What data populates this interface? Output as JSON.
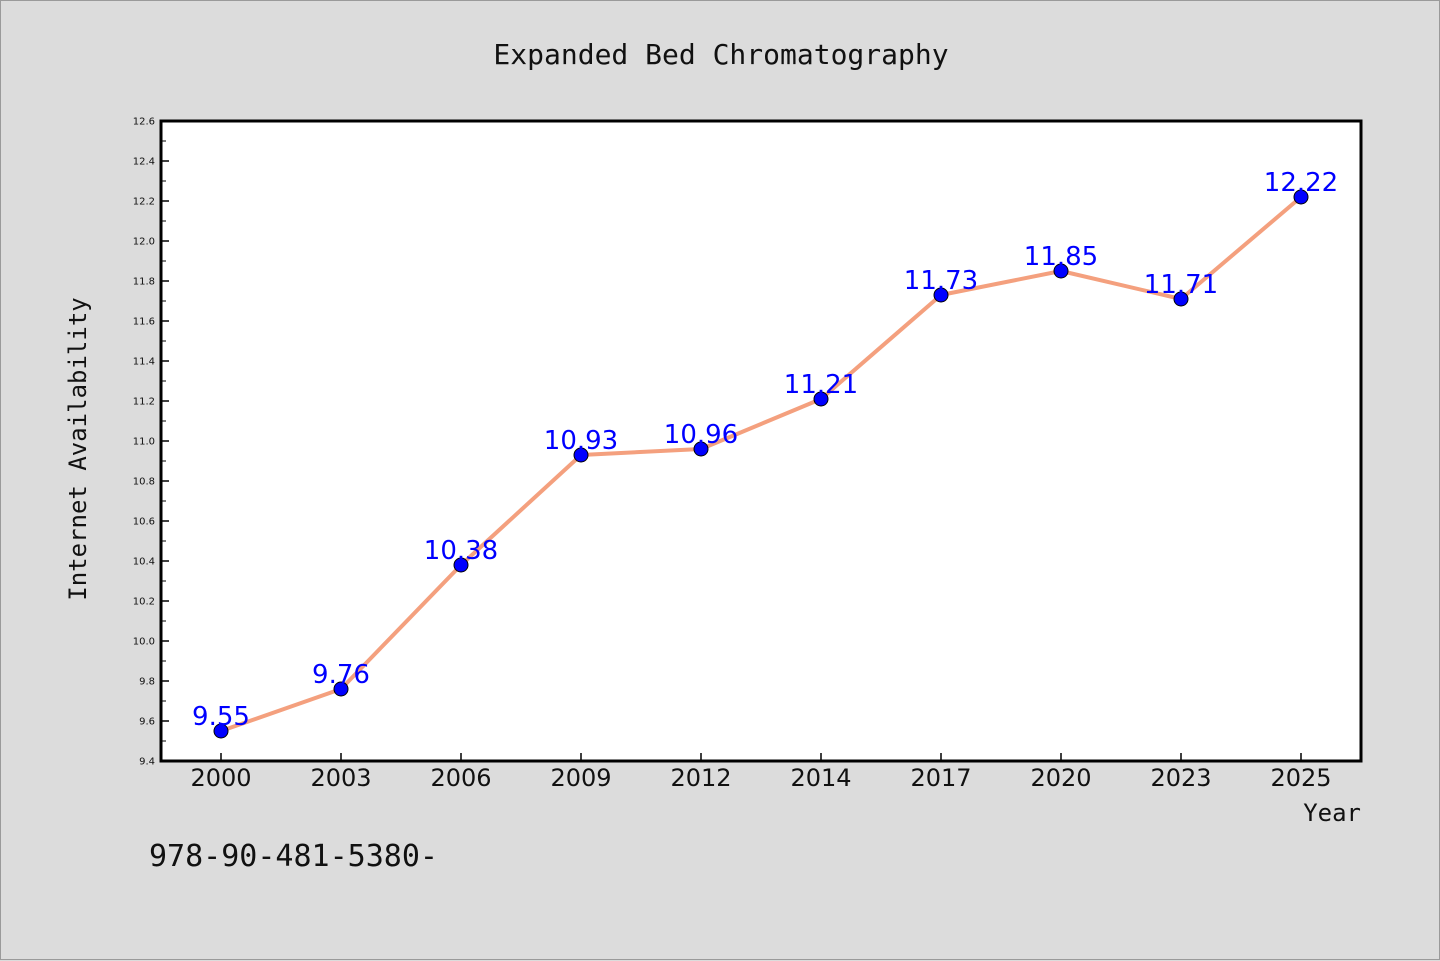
{
  "chart_data": {
    "type": "line",
    "title": "Expanded Bed Chromatography",
    "xlabel": "Year",
    "ylabel": "Internet Availability",
    "categories": [
      "2000",
      "2003",
      "2006",
      "2009",
      "2012",
      "2014",
      "2017",
      "2020",
      "2023",
      "2025"
    ],
    "values": [
      9.55,
      9.76,
      10.38,
      10.93,
      10.96,
      11.21,
      11.73,
      11.85,
      11.71,
      12.22
    ],
    "value_labels": [
      "9.55",
      "9.76",
      "10.38",
      "10.93",
      "10.96",
      "11.21",
      "11.73",
      "11.85",
      "11.71",
      "12.22"
    ],
    "ylim": [
      9.4,
      12.6
    ],
    "yticks": [
      "9.4",
      "9.6",
      "9.8",
      "10.0",
      "10.2",
      "10.4",
      "10.6",
      "10.8",
      "11.0",
      "11.2",
      "11.4",
      "11.6",
      "11.8",
      "12.0",
      "12.2",
      "12.4",
      "12.6"
    ],
    "grid": false,
    "line_color": "#f4a07e",
    "marker_color": "#0000ff",
    "label_color": "#0000ff"
  },
  "footer_text": "978-90-481-5380-",
  "colors": {
    "background": "#dcdcdc",
    "plot_background": "#ffffff",
    "axis": "#000000"
  }
}
